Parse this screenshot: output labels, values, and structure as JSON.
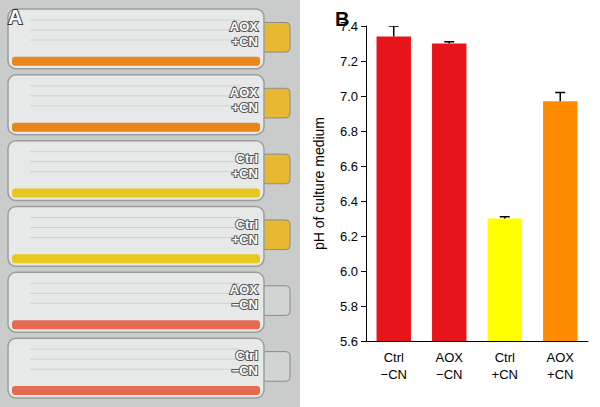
{
  "chart_data": {
    "type": "bar",
    "title": "B",
    "y_label": "pH of culture medium",
    "categories": [
      "Ctrl\n−CN",
      "AOX\n−CN",
      "Ctrl\n+CN",
      "AOX\n+CN"
    ],
    "values": [
      7.34,
      7.3,
      6.3,
      6.97
    ],
    "errors": [
      0.06,
      0.01,
      0.01,
      0.05
    ],
    "colors": [
      "#e8141c",
      "#e8141c",
      "#ffff00",
      "#ff8c00"
    ],
    "ylim": [
      5.6,
      7.4
    ],
    "yticks": [
      5.6,
      5.8,
      {
        "value": 6,
        "label": "6.0"
      },
      6.2,
      6.4,
      6.6,
      6.8,
      {
        "value": 7,
        "label": "7.0"
      },
      7.2,
      7.4
    ],
    "grid": false
  },
  "photo": {
    "label": "A",
    "flasks": [
      {
        "label": "AOX\n+CN",
        "color": "#e8861c"
      },
      {
        "label": "AOX\n+CN",
        "color": "#e8861c"
      },
      {
        "label": "Ctrl\n+CN",
        "color": "#e8c820"
      },
      {
        "label": "Ctrl\n+CN",
        "color": "#e8c820"
      },
      {
        "label": "AOX\n−CN",
        "color": "#e46a50"
      },
      {
        "label": "Ctrl\n−CN",
        "color": "#e46a50"
      }
    ]
  }
}
